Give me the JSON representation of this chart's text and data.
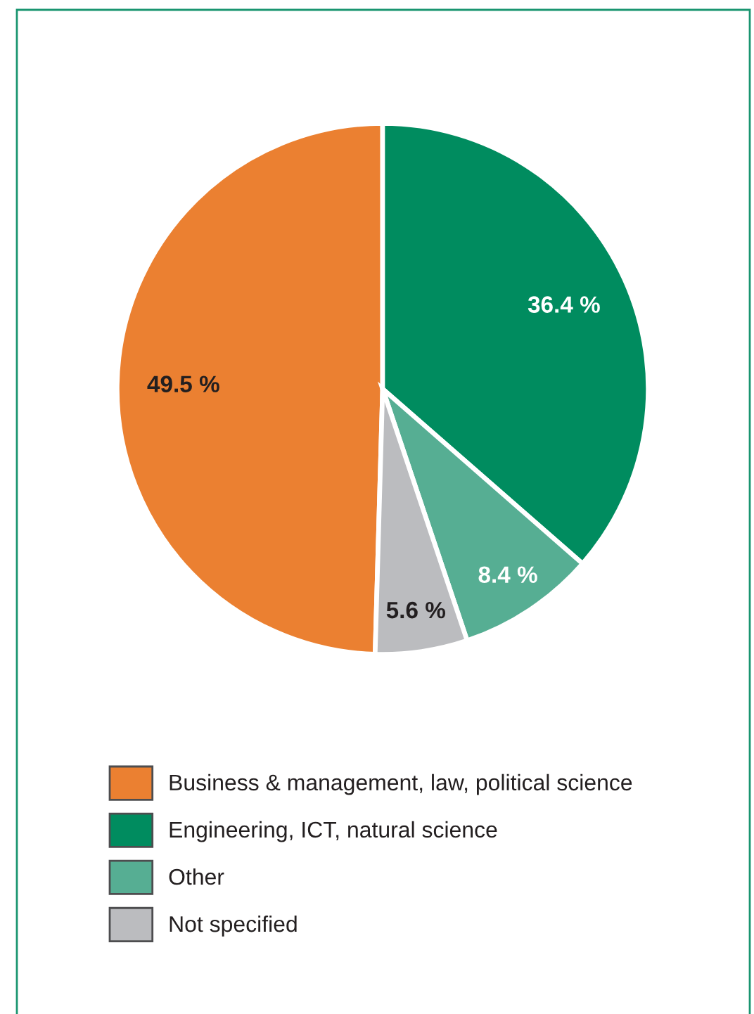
{
  "chart_data": {
    "type": "pie",
    "categories": [
      "Business & management, law, political science",
      "Engineering, ICT, natural science",
      "Other",
      "Not specified"
    ],
    "values": [
      49.5,
      36.4,
      8.4,
      5.6
    ],
    "colors": [
      "#eb8031",
      "#008c5f",
      "#56ae93",
      "#bbbcbf"
    ],
    "value_labels": [
      "49.5 %",
      "36.4 %",
      "8.4 %",
      "5.6 %"
    ],
    "legend": "bottom"
  }
}
